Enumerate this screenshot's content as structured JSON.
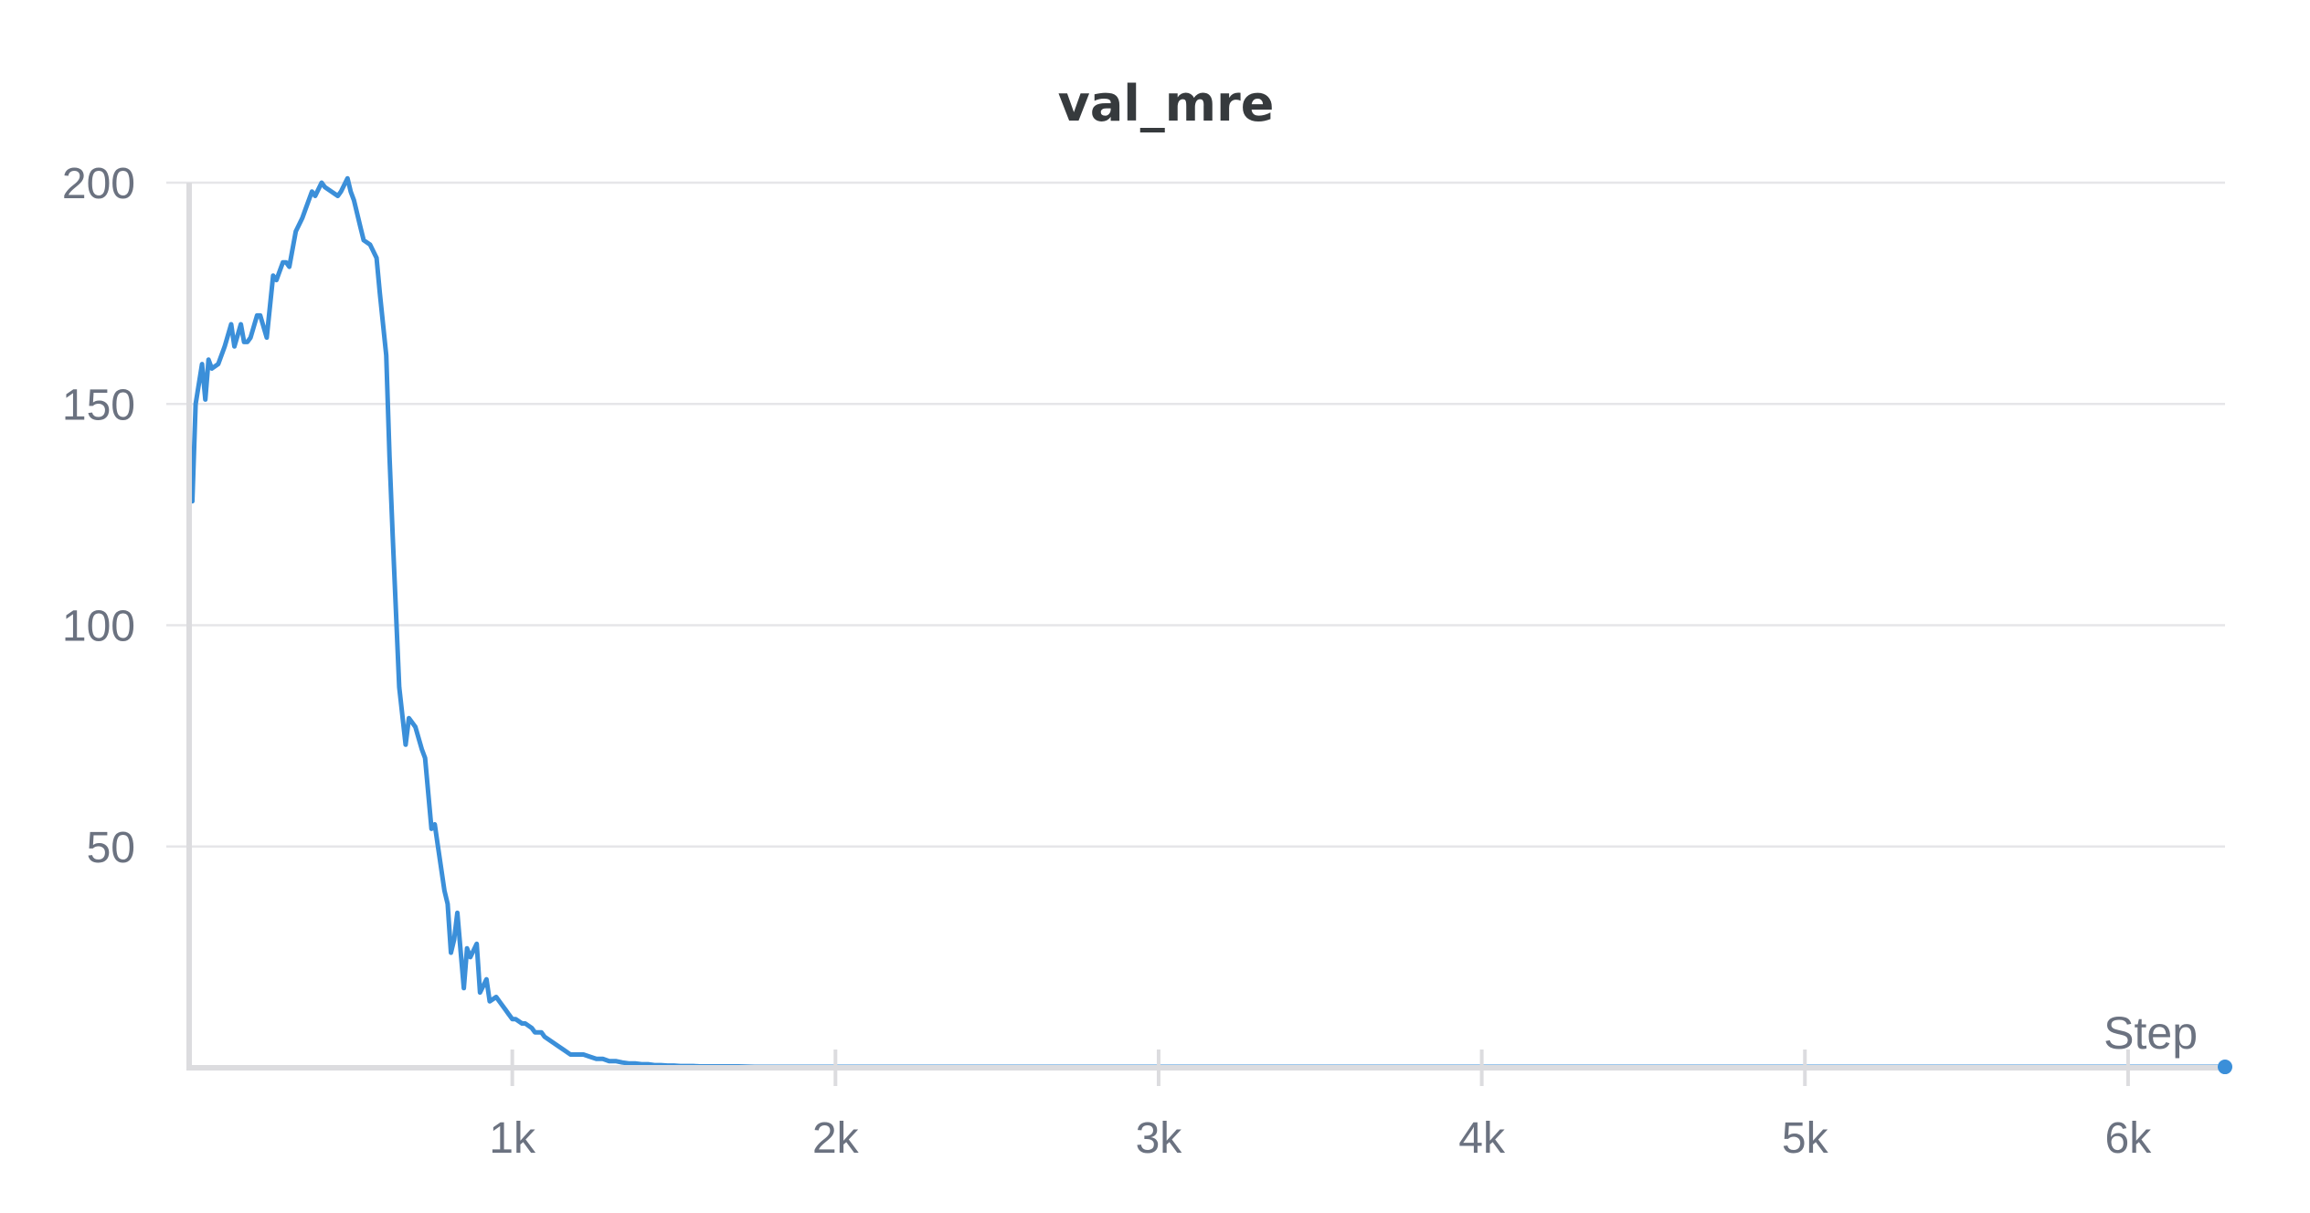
{
  "chart_data": {
    "type": "line",
    "title": "val_mre",
    "xlabel": "Step",
    "ylabel": "",
    "xlim": [
      0,
      6300
    ],
    "ylim": [
      0,
      200
    ],
    "grid": true,
    "legend": "none",
    "x_ticks": [
      {
        "value": 1000,
        "label": "1k"
      },
      {
        "value": 2000,
        "label": "2k"
      },
      {
        "value": 3000,
        "label": "3k"
      },
      {
        "value": 4000,
        "label": "4k"
      },
      {
        "value": 5000,
        "label": "5k"
      },
      {
        "value": 6000,
        "label": "6k"
      }
    ],
    "y_ticks": [
      {
        "value": 50,
        "label": "50"
      },
      {
        "value": 100,
        "label": "100"
      },
      {
        "value": 150,
        "label": "150"
      },
      {
        "value": 200,
        "label": "200"
      }
    ],
    "series": [
      {
        "color": "#3b8fd9",
        "x": [
          10,
          20,
          40,
          50,
          60,
          70,
          90,
          110,
          130,
          140,
          160,
          170,
          180,
          190,
          210,
          220,
          240,
          260,
          270,
          290,
          300,
          310,
          330,
          350,
          360,
          380,
          390,
          410,
          420,
          440,
          460,
          470,
          490,
          500,
          510,
          530,
          540,
          560,
          580,
          590,
          610,
          620,
          630,
          650,
          670,
          680,
          700,
          720,
          730,
          750,
          760,
          770,
          790,
          800,
          810,
          820,
          830,
          850,
          860,
          870,
          890,
          900,
          920,
          930,
          950,
          960,
          980,
          990,
          1000,
          1010,
          1030,
          1040,
          1060,
          1070,
          1090,
          1100,
          1120,
          1140,
          1160,
          1180,
          1200,
          1220,
          1240,
          1260,
          1280,
          1300,
          1320,
          1340,
          1360,
          1380,
          1400,
          1420,
          1440,
          1460,
          1480,
          1500,
          1520,
          1540,
          1560,
          1580,
          1600,
          1650,
          1700,
          1750,
          1800,
          1850,
          1900,
          1950,
          2000,
          2100,
          2200,
          2300,
          2400,
          2500,
          2600,
          2800,
          3000,
          3200,
          3400,
          3600,
          3800,
          4000,
          4500,
          5000,
          5500,
          6000,
          6300
        ],
        "y": [
          128,
          150,
          159,
          151,
          160,
          158,
          159,
          163,
          168,
          163,
          168,
          164,
          164,
          165,
          170,
          170,
          165,
          179,
          178,
          182,
          182,
          181,
          189,
          192,
          194,
          198,
          197,
          200,
          199,
          198,
          197,
          198,
          201,
          198,
          196,
          190,
          187,
          186,
          183,
          175,
          161,
          138,
          120,
          86,
          73,
          79,
          77,
          72,
          70,
          54,
          55,
          50,
          40,
          37,
          26,
          29,
          35,
          18,
          27,
          25,
          28,
          17,
          20,
          15,
          16,
          15,
          13,
          12,
          11,
          11,
          10,
          10,
          9,
          8,
          8,
          7,
          6,
          5,
          4,
          3,
          3,
          3,
          2.5,
          2,
          2,
          1.5,
          1.5,
          1.2,
          1,
          1,
          0.8,
          0.8,
          0.6,
          0.6,
          0.5,
          0.5,
          0.4,
          0.4,
          0.4,
          0.3,
          0.3,
          0.3,
          0.3,
          0.2,
          0.2,
          0.2,
          0.2,
          0.2,
          0.2,
          0.2,
          0.2,
          0.2,
          0.2,
          0.2,
          0.2,
          0.2,
          0.2,
          0.2,
          0.2,
          0.2,
          0.2,
          0.2,
          0.2,
          0.2,
          0.2,
          0.2,
          0.2
        ]
      }
    ]
  }
}
